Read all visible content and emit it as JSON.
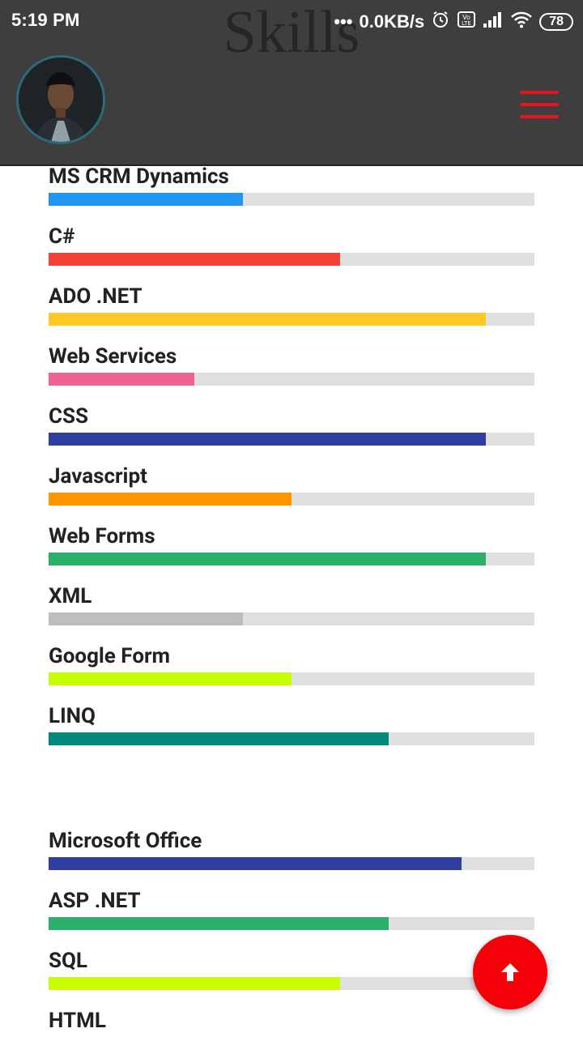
{
  "status_bar": {
    "time": "5:19 PM",
    "network_speed": "0.0KB/s",
    "battery": "78",
    "icons": [
      "dots-icon",
      "alarm-icon",
      "volte-icon",
      "signal-icon",
      "wifi-icon",
      "battery-icon"
    ]
  },
  "header": {
    "title": "Skills",
    "menu_icon": "hamburger-menu-icon",
    "menu_color": "#e8141d"
  },
  "skills": [
    {
      "name": "MS CRM Dynamics",
      "level": 40,
      "color": "#2196f3"
    },
    {
      "name": "C#",
      "level": 60,
      "color": "#f44336"
    },
    {
      "name": "ADO .NET",
      "level": 90,
      "color": "#ffca28"
    },
    {
      "name": "Web Services",
      "level": 30,
      "color": "#f06292"
    },
    {
      "name": "CSS",
      "level": 90,
      "color": "#303f9f"
    },
    {
      "name": "Javascript",
      "level": 50,
      "color": "#ff9800"
    },
    {
      "name": "Web Forms",
      "level": 90,
      "color": "#2bb06a"
    },
    {
      "name": "XML",
      "level": 40,
      "color": "#bdbdbd"
    },
    {
      "name": "Google Form",
      "level": 50,
      "color": "#c6ff00"
    },
    {
      "name": "LINQ",
      "level": 70,
      "color": "#00897b"
    },
    {
      "name": "Microsoft Office",
      "level": 85,
      "color": "#303f9f"
    },
    {
      "name": "ASP .NET",
      "level": 70,
      "color": "#2bb06a"
    },
    {
      "name": "SQL",
      "level": 60,
      "color": "#c6ff00"
    },
    {
      "name": "HTML",
      "level": 0,
      "color": "#ff9800"
    }
  ],
  "fab": {
    "icon": "arrow-up-icon",
    "color": "#f40009"
  }
}
